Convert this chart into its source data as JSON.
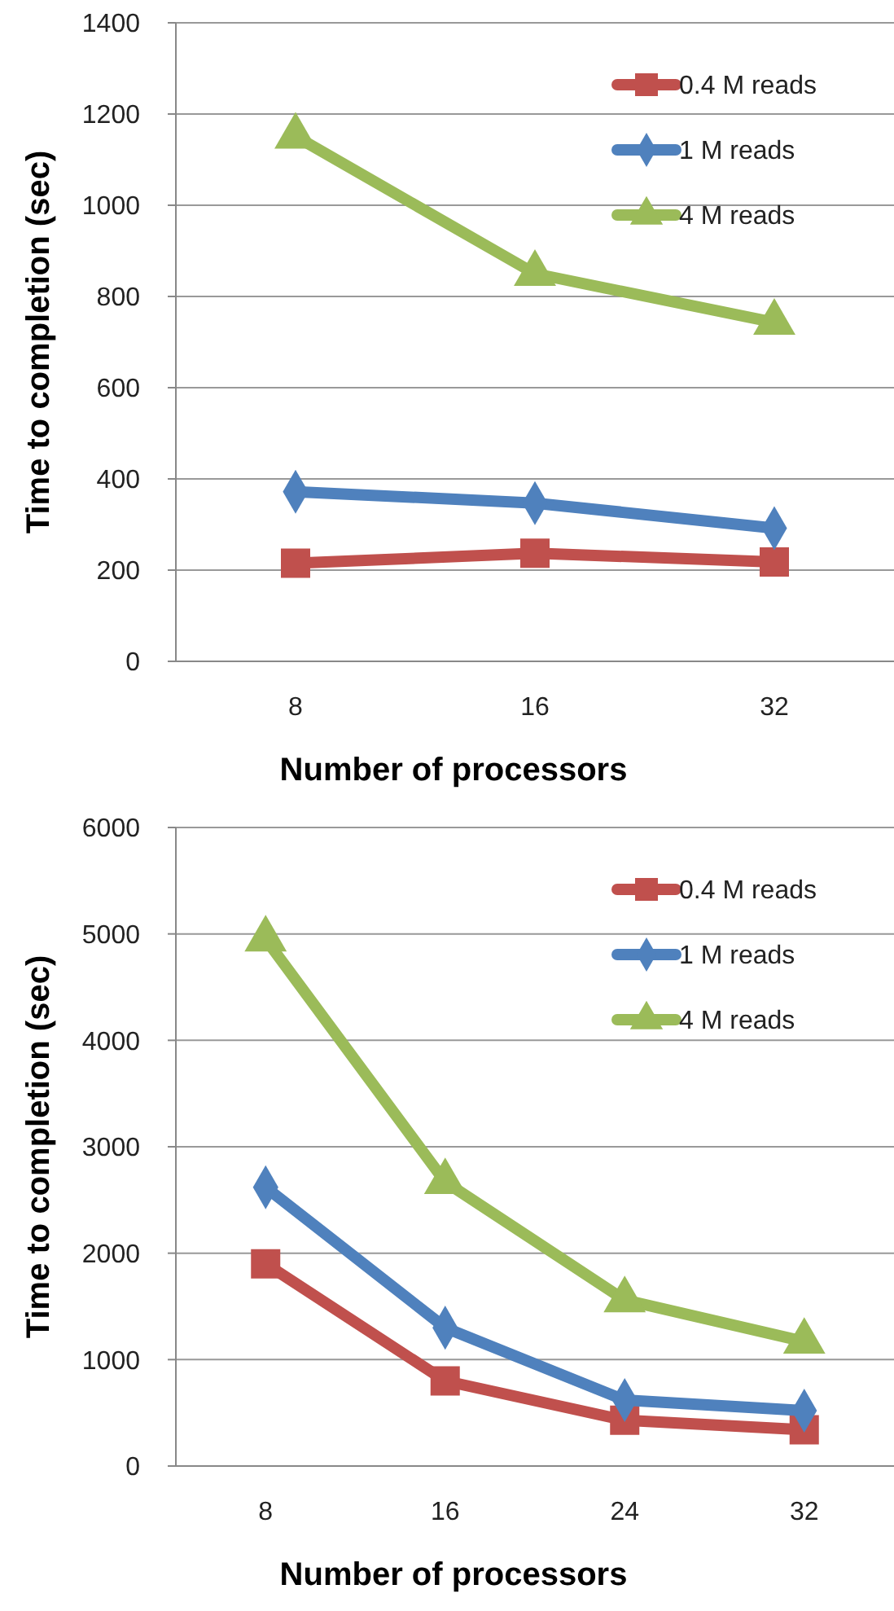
{
  "chart_data": [
    {
      "type": "line",
      "xlabel": "Number of processors",
      "ylabel": "Time to completion (sec)",
      "categories": [
        "8",
        "16",
        "32"
      ],
      "ylim": [
        0,
        1400
      ],
      "yticks": [
        0,
        200,
        400,
        600,
        800,
        1000,
        1200,
        1400
      ],
      "grid": "y",
      "legend": "top right",
      "series": [
        {
          "name": "0.4 M reads",
          "color": "#c0504d",
          "marker": "square",
          "values": [
            215,
            237,
            218
          ]
        },
        {
          "name": "1 M reads",
          "color": "#4f81bd",
          "marker": "diamond",
          "values": [
            372,
            347,
            292
          ]
        },
        {
          "name": "4 M reads",
          "color": "#9bbb59",
          "marker": "triangle",
          "values": [
            1151,
            850,
            743
          ]
        }
      ]
    },
    {
      "type": "line",
      "xlabel": "Number of processors",
      "ylabel": "Time to completion (sec)",
      "categories": [
        "8",
        "16",
        "24",
        "32"
      ],
      "ylim": [
        0,
        6000
      ],
      "yticks": [
        0,
        1000,
        2000,
        3000,
        4000,
        5000,
        6000
      ],
      "grid": "y",
      "legend": "top right",
      "series": [
        {
          "name": "0.4 M reads",
          "color": "#c0504d",
          "marker": "square",
          "values": [
            1900,
            800,
            430,
            340
          ]
        },
        {
          "name": "1 M reads",
          "color": "#4f81bd",
          "marker": "diamond",
          "values": [
            2620,
            1300,
            620,
            520
          ]
        },
        {
          "name": "4 M reads",
          "color": "#9bbb59",
          "marker": "triangle",
          "values": [
            4950,
            2670,
            1560,
            1170
          ]
        }
      ]
    }
  ]
}
